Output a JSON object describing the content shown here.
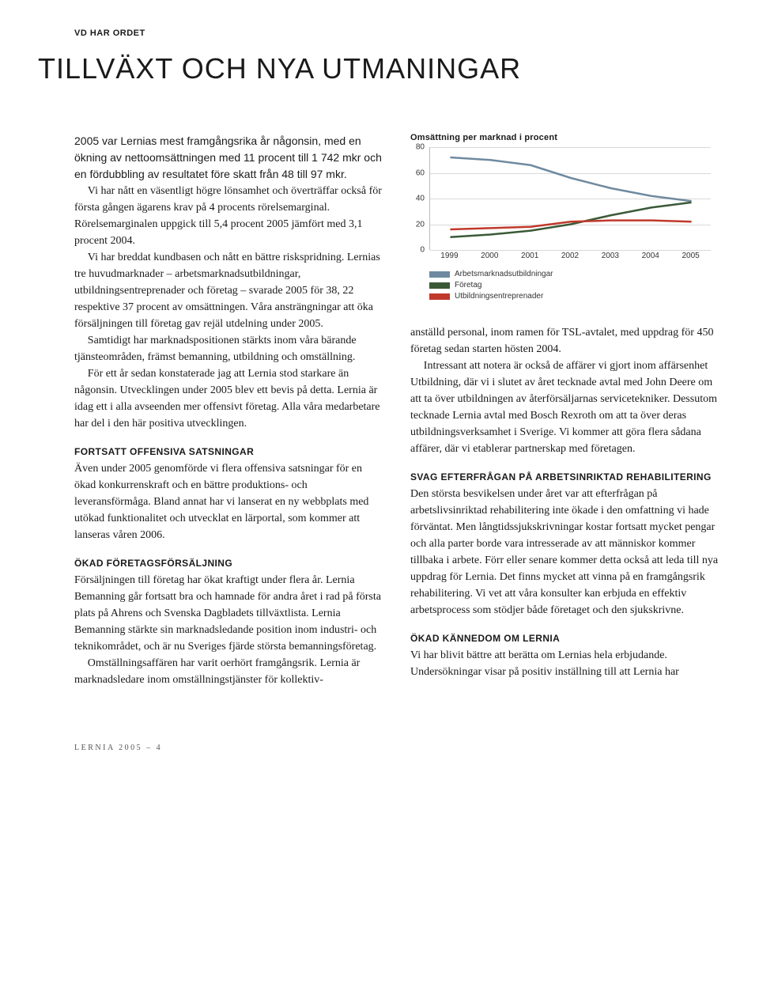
{
  "kicker": "VD HAR ORDET",
  "title": "TILLVÄXT OCH NYA UTMANINGAR",
  "intro": "2005 var Lernias mest framgångsrika år någonsin, med en ökning av nettoomsättningen med 11 procent till 1 742 mkr och en fördubbling av resultatet före skatt från 48 till 97 mkr.",
  "left": {
    "p1": "Vi har nått en väsentligt högre lönsamhet och överträffar också för första gången ägarens krav på 4 procents rörelse­marginal. Rörelsemarginalen uppgick till 5,4 procent 2005 jämfört med 3,1 procent 2004.",
    "p2": "Vi har breddat kundbasen och nått en bättre riskspridning. Lernias tre huvudmarknader – arbetsmarknadsutbildningar, utbildningsentreprenader och företag – svarade 2005 för 38, 22 respektive 37 procent av omsättningen. Våra ansträngningar att öka försäljningen till företag gav rejäl utdelning under 2005.",
    "p3": "Samtidigt har marknadspositionen stärkts inom våra bärande tjänsteområden, främst bemanning, utbildning och omställning.",
    "p4": "För ett år sedan konstaterade jag att Lernia stod starkare än någonsin. Utvecklingen under 2005 blev ett bevis på detta. Lernia är idag ett i alla avseenden mer offensivt företag. Alla våra medarbetare har del i den här positiva utvecklingen.",
    "sub1": "FORTSATT OFFENSIVA SATSNINGAR",
    "p5": "Även under 2005 genomförde vi flera offensiva satsningar för en ökad konkurrenskraft och en bättre produktions- och leveransförmåga. Bland annat har vi lanserat en ny webbplats med utökad funktionalitet och utvecklat en lärportal, som kommer att lanseras våren 2006.",
    "sub2": "ÖKAD FÖRETAGSFÖRSÄLJNING",
    "p6": "Försäljningen till företag har ökat kraftigt under flera år. Lernia Bemanning går fortsatt bra och hamnade för andra året i rad på första plats på Ahrens och Svenska Dagbladets tillväxtlista. Lernia Bemanning stärkte sin marknadsledande position inom industri- och teknikområdet, och är nu Sveriges fjärde största bemanningsföretag.",
    "p7": "Omställningsaffären har varit oerhört framgångsrik. Lernia är marknadsledare inom omställningstjänster för kollektiv-"
  },
  "right": {
    "p1": "anställd personal, inom ramen för TSL-avtalet, med uppdrag för 450 företag sedan starten hösten 2004.",
    "p2": "Intressant att notera är också de affärer vi gjort inom affärs­enhet Utbildning, där vi i slutet av året tecknade avtal med John Deere om att ta över utbildningen av återförsäljarnas servicetekniker. Dessutom tecknade Lernia avtal med Bosch Rexroth om att ta över deras utbildningsverksamhet i Sverige. Vi kommer att göra flera sådana affärer, där vi etablerar partnerskap med företagen.",
    "sub1": "SVAG EFTERFRÅGAN PÅ ARBETSINRIKTAD REHABILITERING",
    "p3": "Den största besvikelsen under året var att efterfrågan på arbetslivsinriktad rehabilitering inte ökade i den omfattning vi hade förväntat. Men långtidssjukskrivningar kostar fortsatt mycket pengar och alla parter borde vara intresserade av att människor kommer tillbaka i arbete. Förr eller senare kommer detta också att leda till nya uppdrag för Lernia. Det finns mycket att vinna på en framgångsrik rehabilitering. Vi vet att våra konsulter kan erbjuda en effektiv arbetsprocess som stödjer både företaget och den sjukskrivne.",
    "sub2": "ÖKAD KÄNNEDOM OM LERNIA",
    "p4": "Vi har blivit bättre att berätta om Lernias hela erbjudande. Undersökningar visar på positiv inställning till att Lernia har"
  },
  "chart": {
    "title": "Omsättning per marknad i procent",
    "type": "line",
    "ylim": [
      0,
      80
    ],
    "ytick_step": 20,
    "yticks": [
      "0",
      "20",
      "40",
      "60",
      "80"
    ],
    "xlabels": [
      "1999",
      "2000",
      "2001",
      "2002",
      "2003",
      "2004",
      "2005"
    ],
    "grid_color": "#d9d9d9",
    "background_color": "#ffffff",
    "line_width": 2.5,
    "series": [
      {
        "name": "Arbetsmarknadsutbildningar",
        "color": "#6f8aa0",
        "values": [
          72,
          70,
          66,
          56,
          48,
          42,
          38
        ]
      },
      {
        "name": "Företag",
        "color": "#3a5a37",
        "values": [
          10,
          12,
          15,
          20,
          27,
          33,
          37
        ]
      },
      {
        "name": "Utbildningsentreprenader",
        "color": "#c0392b",
        "values": [
          16,
          17,
          18,
          22,
          23,
          23,
          22
        ]
      }
    ],
    "legend": [
      {
        "label": "Arbetsmarknadsutbildningar",
        "color": "#6f8aa0"
      },
      {
        "label": "Företag",
        "color": "#3a5a37"
      },
      {
        "label": "Utbildningsentreprenader",
        "color": "#c0392b"
      }
    ]
  },
  "footer": "LERNIA 2005 – 4"
}
